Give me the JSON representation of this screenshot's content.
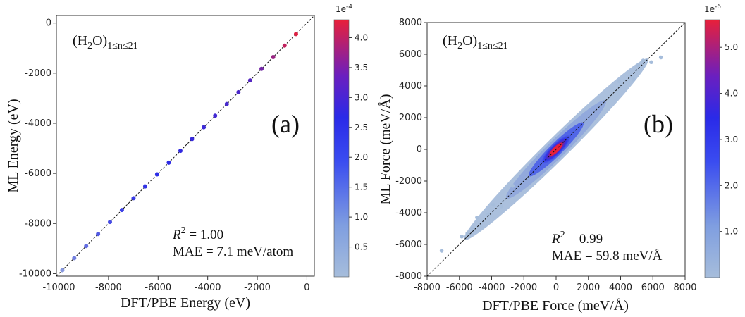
{
  "chart_data": [
    {
      "type": "scatter",
      "panel_label": "(a)",
      "title": "(H2O)1≤n≤21",
      "title_parts": {
        "main": "(H",
        "sub1": "2",
        "mid": "O)",
        "sub2": "1≤n≤21"
      },
      "xlabel": "DFT/PBE Energy (eV)",
      "ylabel": "ML Energy (eV)",
      "xlim": [
        -10100,
        300
      ],
      "ylim": [
        -10100,
        300
      ],
      "xticks": [
        -10000,
        -8000,
        -6000,
        -4000,
        -2000,
        0
      ],
      "yticks": [
        -10000,
        -8000,
        -6000,
        -4000,
        -2000,
        0
      ],
      "x": [
        -9860,
        -9380,
        -8900,
        -8420,
        -7940,
        -7460,
        -6990,
        -6520,
        -6040,
        -5570,
        -5100,
        -4630,
        -4160,
        -3700,
        -3230,
        -2760,
        -2290,
        -1830,
        -1360,
        -900,
        -440
      ],
      "y": [
        -9860,
        -9380,
        -8900,
        -8420,
        -7940,
        -7460,
        -6990,
        -6520,
        -6040,
        -5570,
        -5100,
        -4630,
        -4160,
        -3700,
        -3230,
        -2760,
        -2290,
        -1830,
        -1360,
        -900,
        -440
      ],
      "density": [
        0.6,
        1.0,
        1.3,
        1.6,
        1.8,
        2.0,
        2.1,
        2.2,
        2.3,
        2.4,
        2.45,
        2.5,
        2.55,
        2.6,
        2.65,
        2.7,
        2.8,
        3.1,
        3.5,
        3.9,
        4.2
      ],
      "annotations": {
        "r2_label": "R",
        "r2_power": "2",
        "r2_value": " = 1.00",
        "mae": "MAE = 7.1 meV/atom"
      },
      "colorbar": {
        "exponent_base": "1e",
        "exponent_power": "-4",
        "range": [
          0,
          4.3
        ],
        "ticks": [
          "0.5",
          "1.0",
          "1.5",
          "2.0",
          "2.5",
          "3.0",
          "3.5",
          "4.0"
        ],
        "tick_values": [
          0.5,
          1.0,
          1.5,
          2.0,
          2.5,
          3.0,
          3.5,
          4.0
        ]
      },
      "colors": {
        "low": "#a6bddb",
        "mid": "#2a2ae8",
        "high": "#e8203a"
      },
      "grid": false
    },
    {
      "type": "scatter",
      "panel_label": "(b)",
      "title": "(H2O)1≤n≤21",
      "title_parts": {
        "main": "(H",
        "sub1": "2",
        "mid": "O)",
        "sub2": "1≤n≤21"
      },
      "xlabel": "DFT/PBE Force (meV/Å)",
      "ylabel": "ML Force (meV/Å)",
      "xlim": [
        -8000,
        8000
      ],
      "ylim": [
        -8000,
        8000
      ],
      "xticks": [
        -8000,
        -6000,
        -4000,
        -2000,
        0,
        2000,
        4000,
        6000,
        8000
      ],
      "yticks": [
        -8000,
        -6000,
        -4000,
        -2000,
        0,
        2000,
        4000,
        6000,
        8000
      ],
      "points": [
        [
          -7100,
          -6400
        ],
        [
          -5850,
          -5500
        ],
        [
          -5500,
          -5300
        ],
        [
          -5200,
          -5000
        ],
        [
          -4900,
          -4300
        ],
        [
          -4200,
          -4100
        ],
        [
          -3900,
          -3500
        ],
        [
          -3400,
          -3600
        ],
        [
          5400,
          5600
        ],
        [
          5900,
          5500
        ],
        [
          6500,
          5800
        ],
        [
          5100,
          5300
        ],
        [
          4800,
          4400
        ],
        [
          -2700,
          -2300
        ],
        [
          3900,
          4300
        ]
      ],
      "cloud": {
        "spread_low": 320,
        "spread_mid": 180,
        "spread_core": 80,
        "extent": 5600
      },
      "annotations": {
        "r2_label": "R",
        "r2_power": "2",
        "r2_value": " = 0.99",
        "mae": "MAE = 59.8 meV/Å"
      },
      "colorbar": {
        "exponent_base": "1e",
        "exponent_power": "-6",
        "range": [
          0,
          5.6
        ],
        "ticks": [
          "1.0",
          "2.0",
          "3.0",
          "4.0",
          "5.0"
        ],
        "tick_values": [
          1.0,
          2.0,
          3.0,
          4.0,
          5.0
        ]
      },
      "colors": {
        "low": "#a6bddb",
        "mid": "#2a2ae8",
        "high": "#e8203a"
      },
      "grid": false
    }
  ]
}
